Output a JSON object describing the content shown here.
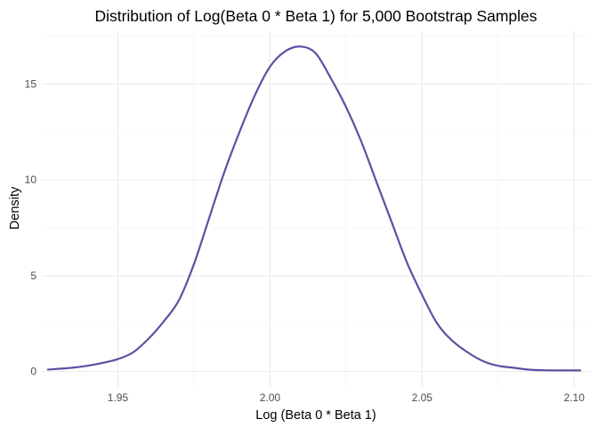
{
  "chart_data": {
    "type": "line",
    "title": "Distribution of Log(Beta 0 * Beta 1) for 5,000 Bootstrap Samples",
    "xlabel": "Log (Beta 0 * Beta 1)",
    "ylabel": "Density",
    "xlim": [
      1.925,
      2.1055
    ],
    "ylim": [
      -0.85,
      17.8
    ],
    "x_ticks": [
      1.95,
      2.0,
      2.05,
      2.1
    ],
    "x_tick_labels": [
      "1.95",
      "2.00",
      "2.05",
      "2.10"
    ],
    "y_ticks": [
      0,
      5,
      10,
      15
    ],
    "y_tick_labels": [
      "0",
      "5",
      "10",
      "15"
    ],
    "grid": true,
    "line_color": "#5e4fa2",
    "series": [
      {
        "x": [
          1.927,
          1.935,
          1.94,
          1.945,
          1.95,
          1.955,
          1.96,
          1.965,
          1.97,
          1.975,
          1.98,
          1.985,
          1.99,
          1.995,
          2.0,
          2.005,
          2.01,
          2.015,
          2.02,
          2.025,
          2.03,
          2.035,
          2.04,
          2.045,
          2.05,
          2.055,
          2.06,
          2.065,
          2.07,
          2.075,
          2.08,
          2.085,
          2.09,
          2.095,
          2.102
        ],
        "y": [
          0.1,
          0.2,
          0.3,
          0.45,
          0.65,
          1.0,
          1.7,
          2.6,
          3.7,
          5.6,
          8.0,
          10.4,
          12.5,
          14.4,
          15.9,
          16.7,
          16.95,
          16.6,
          15.3,
          13.8,
          12.0,
          9.9,
          7.8,
          5.7,
          4.0,
          2.5,
          1.6,
          1.0,
          0.55,
          0.3,
          0.2,
          0.1,
          0.07,
          0.06,
          0.06
        ]
      }
    ]
  }
}
